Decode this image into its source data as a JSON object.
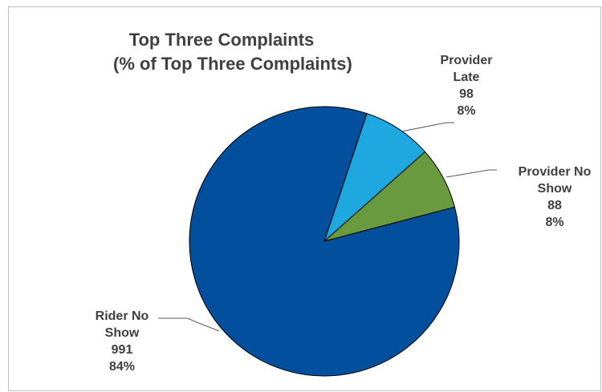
{
  "chart_data": {
    "type": "pie",
    "title": "Top Three Complaints",
    "subtitle": "(% of Top Three Complaints)",
    "slices": [
      {
        "label_lines": [
          "Rider No",
          "Show"
        ],
        "value": 991,
        "percent": "84%",
        "color": "#024f9e"
      },
      {
        "label_lines": [
          "Provider",
          "Late"
        ],
        "value": 98,
        "percent": "8%",
        "color": "#1fa8e0"
      },
      {
        "label_lines": [
          "Provider No",
          "Show"
        ],
        "value": 88,
        "percent": "8%",
        "color": "#6a9a40"
      }
    ]
  }
}
